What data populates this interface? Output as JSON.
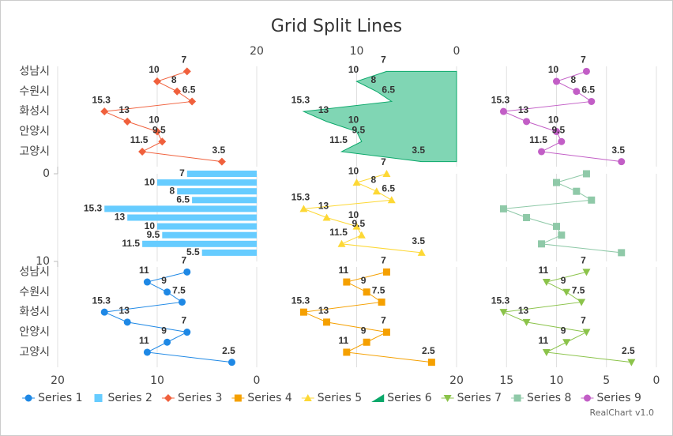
{
  "chart_data": {
    "type": "split",
    "title": "Grid Split Lines",
    "credit": "RealChart v1.0",
    "grid": true,
    "legend": "bottom",
    "rows": [
      {
        "categories": [
          "성남시",
          null,
          "수원시",
          null,
          "화성시",
          null,
          "안양시",
          null,
          "고양시",
          null
        ]
      },
      {
        "ylim": [
          0,
          10
        ],
        "yticks": [
          0,
          10
        ]
      },
      {
        "categories": [
          "성남시",
          null,
          "수원시",
          null,
          "화성시",
          null,
          "안양시",
          null,
          "고양시",
          null
        ]
      }
    ],
    "columns": [
      {
        "xlim": [
          20,
          0
        ],
        "xticks": [
          20,
          10,
          0
        ],
        "axis_position": "bottom"
      },
      {
        "xlim": [
          20,
          0
        ],
        "xticks": [
          20,
          10,
          0
        ],
        "axis_position": "top"
      },
      {
        "xlim": [
          20,
          0
        ],
        "xticks": [
          20,
          15,
          10,
          5,
          0
        ],
        "axis_position": "bottom"
      }
    ],
    "series": [
      {
        "name": "Series 1",
        "type": "line",
        "marker": "circle",
        "color": "#1e88e5",
        "row": 2,
        "column": 0,
        "values": [
          7,
          11,
          9,
          7.5,
          15.3,
          13,
          7,
          9,
          11,
          2.5
        ]
      },
      {
        "name": "Series 2",
        "type": "bar",
        "color": "#66ccff",
        "row": 1,
        "column": 0,
        "values": [
          7,
          10,
          8,
          6.5,
          15.3,
          13,
          10,
          9.5,
          11.5,
          5.5
        ]
      },
      {
        "name": "Series 3",
        "type": "line",
        "marker": "diamond",
        "color": "#f0603c",
        "row": 0,
        "column": 0,
        "values": [
          7,
          10,
          8,
          6.5,
          15.3,
          13,
          10,
          9.5,
          11.5,
          3.5
        ]
      },
      {
        "name": "Series 4",
        "type": "line",
        "marker": "square",
        "color": "#f5a000",
        "row": 2,
        "column": 1,
        "values": [
          7,
          11,
          9,
          7.5,
          15.3,
          13,
          7,
          9,
          11,
          2.5
        ]
      },
      {
        "name": "Series 5",
        "type": "line",
        "marker": "triangle",
        "color": "#fdd835",
        "row": 1,
        "column": 1,
        "values": [
          7,
          10,
          8,
          6.5,
          15.3,
          13,
          10,
          9.5,
          11.5,
          3.5
        ]
      },
      {
        "name": "Series 6",
        "type": "area",
        "color": "#0aa86a",
        "fill": "#80d6b4",
        "row": 0,
        "column": 1,
        "values": [
          7,
          10,
          8,
          6.5,
          15.3,
          13,
          10,
          9.5,
          11.5,
          3.5
        ]
      },
      {
        "name": "Series 7",
        "type": "line",
        "marker": "triangle-down",
        "color": "#8bc34a",
        "row": 2,
        "column": 2,
        "values": [
          7,
          11,
          9,
          7.5,
          15.3,
          13,
          7,
          9,
          11,
          2.5
        ]
      },
      {
        "name": "Series 8",
        "type": "line",
        "marker": "square",
        "color": "#8fc9a8",
        "row": 1,
        "column": 2,
        "show_labels": false,
        "values": [
          7,
          10,
          8,
          6.5,
          15.3,
          13,
          10,
          9.5,
          11.5,
          3.5
        ]
      },
      {
        "name": "Series 9",
        "type": "line",
        "marker": "circle",
        "color": "#c25ec6",
        "row": 0,
        "column": 2,
        "values": [
          7,
          10,
          8,
          6.5,
          15.3,
          13,
          10,
          9.5,
          11.5,
          3.5
        ]
      }
    ]
  }
}
